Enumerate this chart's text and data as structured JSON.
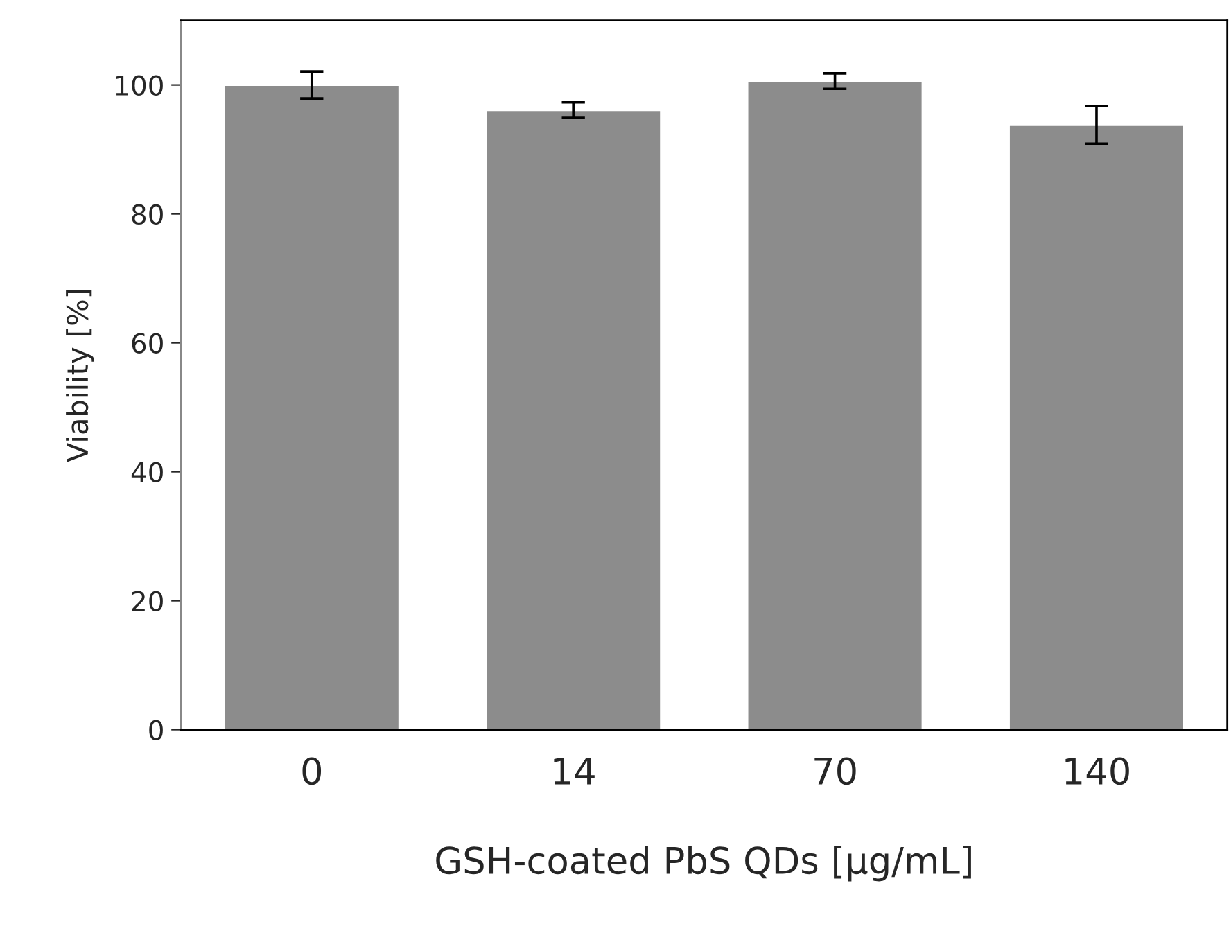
{
  "chart_data": {
    "type": "bar",
    "xlabel": "GSH-coated PbS QDs [μg/mL]",
    "ylabel": "Viability [%]",
    "categories": [
      "0",
      "14",
      "70",
      "140"
    ],
    "values": [
      100,
      96.1,
      100.6,
      93.8
    ],
    "errors": [
      2.1,
      1.2,
      1.2,
      2.9
    ],
    "color": "#8c8c8c",
    "ylim": [
      0,
      110
    ],
    "yticks": [
      0,
      20,
      40,
      60,
      80,
      100
    ],
    "grid": false
  }
}
